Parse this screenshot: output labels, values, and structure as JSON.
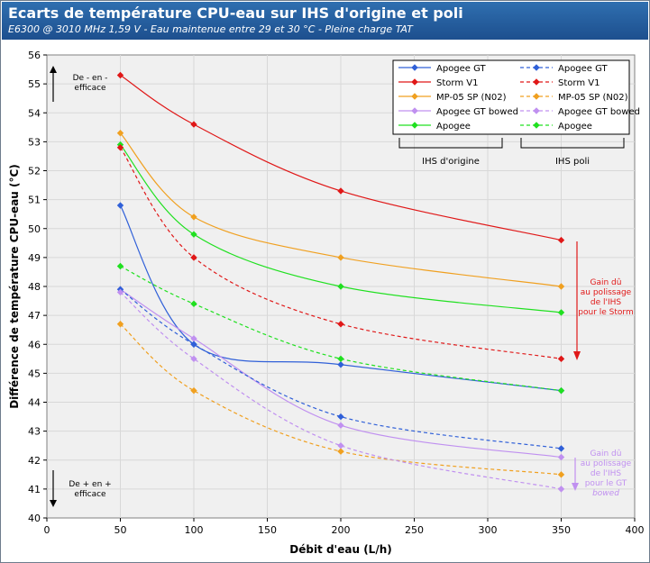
{
  "title": "Ecarts de température CPU-eau sur IHS d'origine et poli",
  "subtitle": "E6300 @ 3010 MHz 1,59 V -  Eau maintenue entre 29 et 30 °C - Pleine charge TAT",
  "chart_data": {
    "type": "line",
    "xlabel": "Débit d'eau (L/h)",
    "ylabel": "Différence de température CPU-eau (°C)",
    "xlim": [
      0,
      400
    ],
    "ylim": [
      40,
      56
    ],
    "xticks": [
      0,
      50,
      100,
      150,
      200,
      250,
      300,
      350,
      400
    ],
    "yticks": [
      40,
      41,
      42,
      43,
      44,
      45,
      46,
      47,
      48,
      49,
      50,
      51,
      52,
      53,
      54,
      55,
      56
    ],
    "grid": true,
    "legend_position": "top-right",
    "legend_group_labels": [
      "IHS d'origine",
      "IHS poli"
    ],
    "series": [
      {
        "name": "Apogee GT",
        "group": "IHS d'origine",
        "style": "solid",
        "color": "#3060d8",
        "x": [
          50,
          100,
          200,
          350
        ],
        "y": [
          50.8,
          46.0,
          45.3,
          44.4
        ]
      },
      {
        "name": "Storm V1",
        "group": "IHS d'origine",
        "style": "solid",
        "color": "#e01818",
        "x": [
          50,
          100,
          200,
          350
        ],
        "y": [
          55.3,
          53.6,
          51.3,
          49.6
        ]
      },
      {
        "name": "MP-05 SP (N02)",
        "group": "IHS d'origine",
        "style": "solid",
        "color": "#f0a020",
        "x": [
          50,
          100,
          200,
          350
        ],
        "y": [
          53.3,
          50.4,
          49.0,
          48.0
        ]
      },
      {
        "name": "Apogee GT bowed",
        "group": "IHS d'origine",
        "style": "solid",
        "color": "#c090f0",
        "x": [
          50,
          100,
          200,
          350
        ],
        "y": [
          47.9,
          46.2,
          43.2,
          42.1
        ]
      },
      {
        "name": "Apogee",
        "group": "IHS d'origine",
        "style": "solid",
        "color": "#20e020",
        "x": [
          50,
          100,
          200,
          350
        ],
        "y": [
          52.9,
          49.8,
          48.0,
          47.1
        ]
      },
      {
        "name": "Apogee GT",
        "group": "IHS poli",
        "style": "dashed",
        "color": "#3060d8",
        "x": [
          50,
          100,
          200,
          350
        ],
        "y": [
          47.9,
          46.0,
          43.5,
          42.4
        ]
      },
      {
        "name": "Storm V1",
        "group": "IHS poli",
        "style": "dashed",
        "color": "#e01818",
        "x": [
          50,
          100,
          200,
          350
        ],
        "y": [
          52.8,
          49.0,
          46.7,
          45.5
        ]
      },
      {
        "name": "MP-05 SP (N02)",
        "group": "IHS poli",
        "style": "dashed",
        "color": "#f0a020",
        "x": [
          50,
          100,
          200,
          350
        ],
        "y": [
          46.7,
          44.4,
          42.3,
          41.5
        ]
      },
      {
        "name": "Apogee GT bowed",
        "group": "IHS poli",
        "style": "dashed",
        "color": "#c090f0",
        "x": [
          50,
          100,
          200,
          350
        ],
        "y": [
          47.8,
          45.5,
          42.5,
          41.0
        ]
      },
      {
        "name": "Apogee",
        "group": "IHS poli",
        "style": "dashed",
        "color": "#20e020",
        "x": [
          50,
          100,
          200,
          350
        ],
        "y": [
          48.7,
          47.4,
          45.5,
          44.4
        ]
      }
    ],
    "annotations": {
      "top_left": [
        "De - en -",
        "efficace"
      ],
      "bottom_left": [
        "De + en +",
        "efficace"
      ],
      "storm_gain": [
        "Gain dû",
        "au polissage",
        "de l'IHS",
        "pour le Storm"
      ],
      "gt_gain": [
        "Gain dû",
        "au polissage",
        "de l'IHS",
        "pour le GT",
        "bowed"
      ]
    }
  }
}
